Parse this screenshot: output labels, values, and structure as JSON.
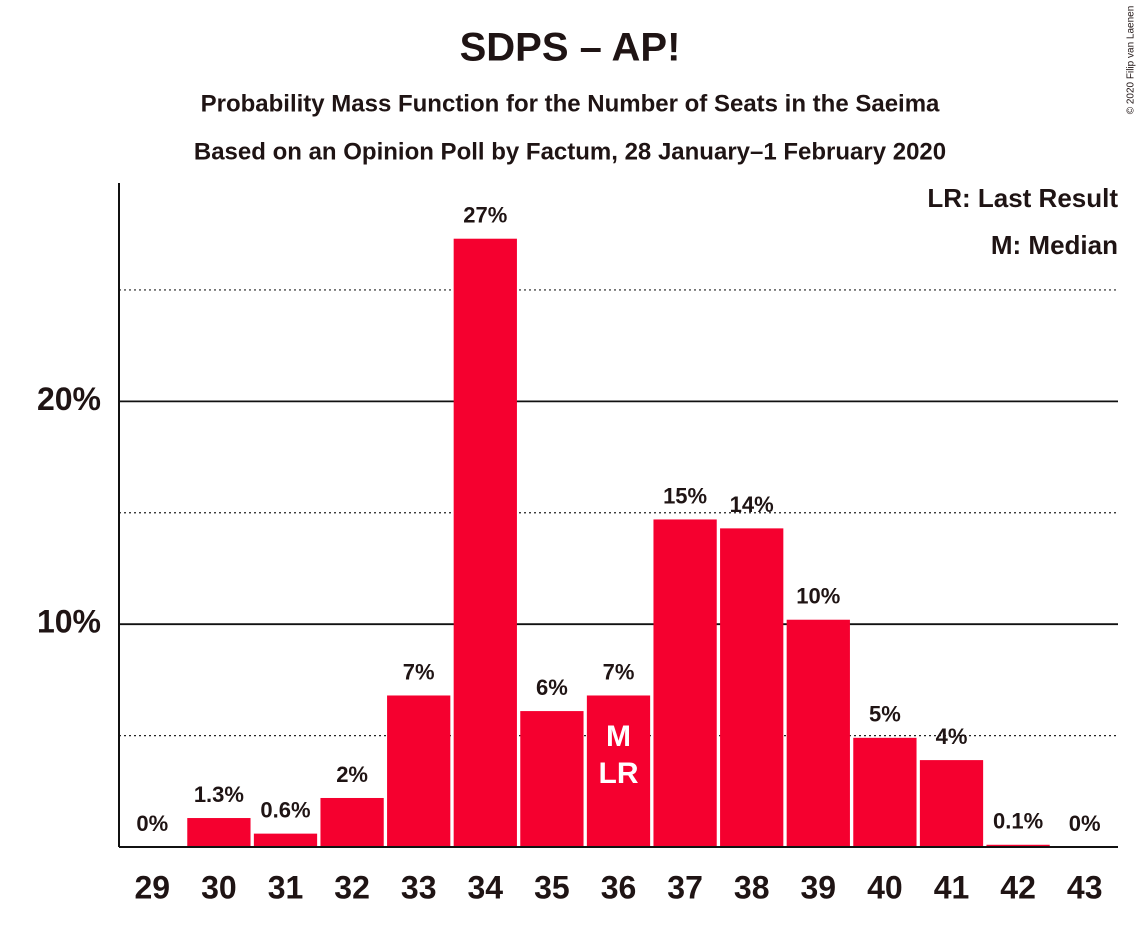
{
  "chart_data": {
    "type": "bar",
    "title": "SDPS – AP!",
    "subtitle": "Probability Mass Function for the Number of Seats in the Saeima",
    "subtitle2": "Based on an Opinion Poll by Factum, 28 January–1 February 2020",
    "credit": "© 2020 Filip van Laenen",
    "categories": [
      "29",
      "30",
      "31",
      "32",
      "33",
      "34",
      "35",
      "36",
      "37",
      "38",
      "39",
      "40",
      "41",
      "42",
      "43"
    ],
    "values": [
      0,
      1.3,
      0.6,
      2.2,
      6.8,
      27.3,
      6.1,
      6.8,
      14.7,
      14.3,
      10.2,
      4.9,
      3.9,
      0.1,
      0
    ],
    "value_labels": [
      "0%",
      "1.3%",
      "0.6%",
      "2%",
      "7%",
      "27%",
      "6%",
      "7%",
      "15%",
      "14%",
      "10%",
      "5%",
      "4%",
      "0.1%",
      "0%"
    ],
    "color": "#f5002f",
    "ylim": [
      0,
      29.8
    ],
    "yticks": [
      {
        "value": 10,
        "label": "10%"
      },
      {
        "value": 20,
        "label": "20%"
      }
    ],
    "minor_yticks": [
      5,
      15,
      25
    ],
    "grid": true,
    "bar_annotations": [
      {
        "category": "36",
        "text": "M"
      },
      {
        "category": "36",
        "text": "LR"
      }
    ],
    "legend": [
      "LR: Last Result",
      "M: Median"
    ]
  }
}
